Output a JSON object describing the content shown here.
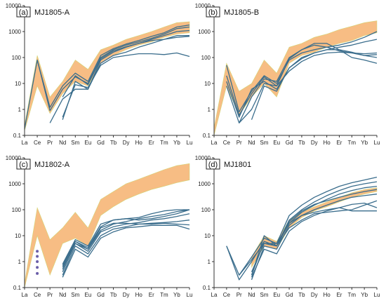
{
  "colors": {
    "line": "#3a6d8c",
    "band": "#f7bd84",
    "band_edge": "#c9d66a",
    "dots": "#6a5ea8"
  },
  "chart_data": [
    {
      "type": "line",
      "tag": "(a)",
      "title": "MJ1805-A",
      "x": [
        "La",
        "Ce",
        "Pr",
        "Nd",
        "Sm",
        "Eu",
        "Gd",
        "Tb",
        "Dy",
        "Ho",
        "Er",
        "Tm",
        "Yb",
        "Lu"
      ],
      "yscale": "log",
      "ylim": [
        0.1,
        10000
      ],
      "yticks": [
        "0.1",
        "1",
        "10",
        "100",
        "1000",
        "10000"
      ],
      "band": {
        "upper": [
          0.25,
          120,
          3,
          12,
          80,
          35,
          200,
          300,
          500,
          700,
          1000,
          1500,
          2200,
          2400
        ],
        "lower": [
          0.15,
          8,
          0.7,
          4,
          12,
          8,
          60,
          120,
          200,
          300,
          400,
          600,
          800,
          900
        ]
      },
      "series": [
        {
          "values": [
            0.18,
            80,
            1.2,
            8,
            25,
            12,
            120,
            220,
            330,
            450,
            650,
            900,
            1500,
            1800
          ]
        },
        {
          "values": [
            null,
            80,
            0.9,
            6,
            18,
            10,
            100,
            200,
            300,
            400,
            550,
            800,
            1300,
            1500
          ]
        },
        {
          "values": [
            null,
            null,
            0.3,
            2.5,
            6,
            6,
            60,
            120,
            160,
            250,
            350,
            500,
            700,
            700
          ]
        },
        {
          "values": [
            null,
            null,
            null,
            0.4,
            12,
            6,
            80,
            160,
            250,
            350,
            500,
            700,
            1000,
            1100
          ]
        },
        {
          "values": [
            null,
            null,
            null,
            0.5,
            9,
            7,
            50,
            100,
            120,
            140,
            140,
            130,
            150,
            110
          ]
        },
        {
          "values": [
            null,
            null,
            null,
            3,
            20,
            9,
            90,
            180,
            260,
            350,
            450,
            500,
            600,
            650
          ]
        }
      ]
    },
    {
      "type": "line",
      "tag": "(b)",
      "title": "MJ1805-B",
      "x": [
        "La",
        "Ce",
        "Pr",
        "Nd",
        "Sm",
        "Eu",
        "Gd",
        "Tb",
        "Dy",
        "Ho",
        "Er",
        "Tm",
        "Yb",
        "Lu"
      ],
      "yscale": "log",
      "ylim": [
        0.1,
        10000
      ],
      "yticks": [
        "0.1",
        "1",
        "10",
        "100",
        "1000",
        "10000"
      ],
      "band": {
        "upper": [
          0.2,
          60,
          5,
          10,
          80,
          25,
          250,
          350,
          600,
          800,
          1200,
          1600,
          2200,
          2600
        ],
        "lower": [
          0.1,
          8,
          0.6,
          3,
          10,
          3,
          60,
          120,
          160,
          250,
          350,
          450,
          700,
          900
        ]
      },
      "series": [
        {
          "values": [
            null,
            50,
            0.8,
            5,
            20,
            10,
            80,
            150,
            200,
            250,
            300,
            400,
            600,
            1000
          ]
        },
        {
          "values": [
            null,
            8,
            0.3,
            3,
            15,
            12,
            100,
            200,
            350,
            350,
            200,
            100,
            80,
            60
          ]
        },
        {
          "values": [
            null,
            12,
            0.5,
            6,
            12,
            6,
            40,
            100,
            150,
            200,
            250,
            300,
            400,
            500
          ]
        },
        {
          "values": [
            null,
            20,
            0.6,
            4,
            18,
            8,
            90,
            200,
            300,
            250,
            180,
            150,
            120,
            130
          ]
        },
        {
          "values": [
            null,
            null,
            0.3,
            1,
            10,
            8,
            30,
            70,
            120,
            150,
            160,
            150,
            140,
            150
          ]
        },
        {
          "values": [
            null,
            null,
            null,
            0.4,
            8,
            5,
            40,
            90,
            150,
            200,
            200,
            160,
            120,
            100
          ]
        }
      ]
    },
    {
      "type": "line",
      "tag": "(c)",
      "title": "MJ1802-A",
      "x": [
        "La",
        "Ce",
        "Pr",
        "Nd",
        "Sm",
        "Eu",
        "Gd",
        "Tb",
        "Dy",
        "Ho",
        "Er",
        "Tm",
        "Yb",
        "Lu"
      ],
      "yscale": "log",
      "ylim": [
        0.1,
        10000
      ],
      "yticks": [
        "0.1",
        "1",
        "10",
        "100",
        "1000",
        "10000"
      ],
      "band": {
        "upper": [
          0.15,
          120,
          7,
          20,
          80,
          20,
          250,
          500,
          1000,
          1500,
          2300,
          3500,
          5000,
          6000
        ],
        "lower": [
          0.1,
          10,
          0.3,
          5,
          8,
          4,
          60,
          130,
          250,
          400,
          600,
          800,
          1100,
          1400
        ]
      },
      "dots": {
        "category": "Ce",
        "values": [
          2.5,
          1.6,
          1.0,
          0.6,
          0.35
        ]
      },
      "series": [
        {
          "values": [
            null,
            null,
            null,
            0.25,
            3,
            1.5,
            8,
            14,
            20,
            22,
            25,
            25,
            25,
            18
          ]
        },
        {
          "values": [
            null,
            null,
            null,
            0.3,
            4,
            2,
            10,
            18,
            22,
            28,
            30,
            32,
            35,
            40
          ]
        },
        {
          "values": [
            null,
            null,
            null,
            0.4,
            5,
            2.5,
            14,
            22,
            28,
            32,
            40,
            45,
            55,
            70
          ]
        },
        {
          "values": [
            null,
            null,
            null,
            0.5,
            6,
            3,
            20,
            30,
            30,
            28,
            28,
            30,
            28,
            26
          ]
        },
        {
          "values": [
            null,
            null,
            null,
            0.6,
            5,
            3,
            16,
            28,
            35,
            45,
            55,
            65,
            85,
            100
          ]
        },
        {
          "values": [
            null,
            null,
            null,
            0.7,
            6,
            3.5,
            22,
            40,
            45,
            40,
            45,
            55,
            70,
            100
          ]
        },
        {
          "values": [
            null,
            null,
            null,
            0.8,
            7,
            4,
            28,
            40,
            45,
            50,
            70,
            90,
            100,
            100
          ]
        }
      ]
    },
    {
      "type": "line",
      "tag": "(d)",
      "title": "MJ1801",
      "x": [
        "La",
        "Ce",
        "Pr",
        "Nd",
        "Sm",
        "Eu",
        "Gd",
        "Tb",
        "Dy",
        "Ho",
        "Er",
        "Tm",
        "Yb",
        "Lu"
      ],
      "yscale": "log",
      "ylim": [
        0.1,
        10000
      ],
      "yticks": [
        "0.1",
        "1",
        "10",
        "100",
        "1000",
        "10000"
      ],
      "band": {
        "upper": [
          null,
          null,
          null,
          1.5,
          10,
          6,
          40,
          80,
          130,
          200,
          300,
          450,
          600,
          700
        ],
        "lower": [
          null,
          null,
          null,
          0.6,
          4,
          3,
          20,
          50,
          90,
          130,
          200,
          300,
          400,
          500
        ]
      },
      "series": [
        {
          "values": [
            null,
            4,
            0.3,
            1.5,
            8,
            5,
            60,
            150,
            300,
            500,
            800,
            1100,
            1400,
            1800
          ]
        },
        {
          "values": [
            null,
            4,
            0.2,
            1,
            6,
            4,
            40,
            100,
            200,
            350,
            550,
            800,
            1000,
            1200
          ]
        },
        {
          "values": [
            null,
            null,
            0.3,
            1.2,
            5,
            4,
            30,
            80,
            150,
            250,
            400,
            550,
            700,
            800
          ]
        },
        {
          "values": [
            null,
            null,
            null,
            0.3,
            6,
            4,
            35,
            90,
            160,
            220,
            300,
            400,
            500,
            600
          ]
        },
        {
          "values": [
            null,
            null,
            null,
            0.2,
            4,
            3,
            25,
            60,
            100,
            150,
            220,
            300,
            350,
            400
          ]
        },
        {
          "values": [
            null,
            null,
            null,
            0.25,
            3,
            2,
            15,
            35,
            60,
            90,
            120,
            160,
            180,
            120
          ]
        },
        {
          "values": [
            null,
            null,
            null,
            0.3,
            10,
            4,
            20,
            40,
            70,
            80,
            90,
            100,
            150,
            220
          ]
        },
        {
          "values": [
            null,
            null,
            null,
            0.4,
            5,
            5,
            30,
            60,
            80,
            100,
            120,
            90,
            90,
            90
          ]
        }
      ]
    }
  ]
}
